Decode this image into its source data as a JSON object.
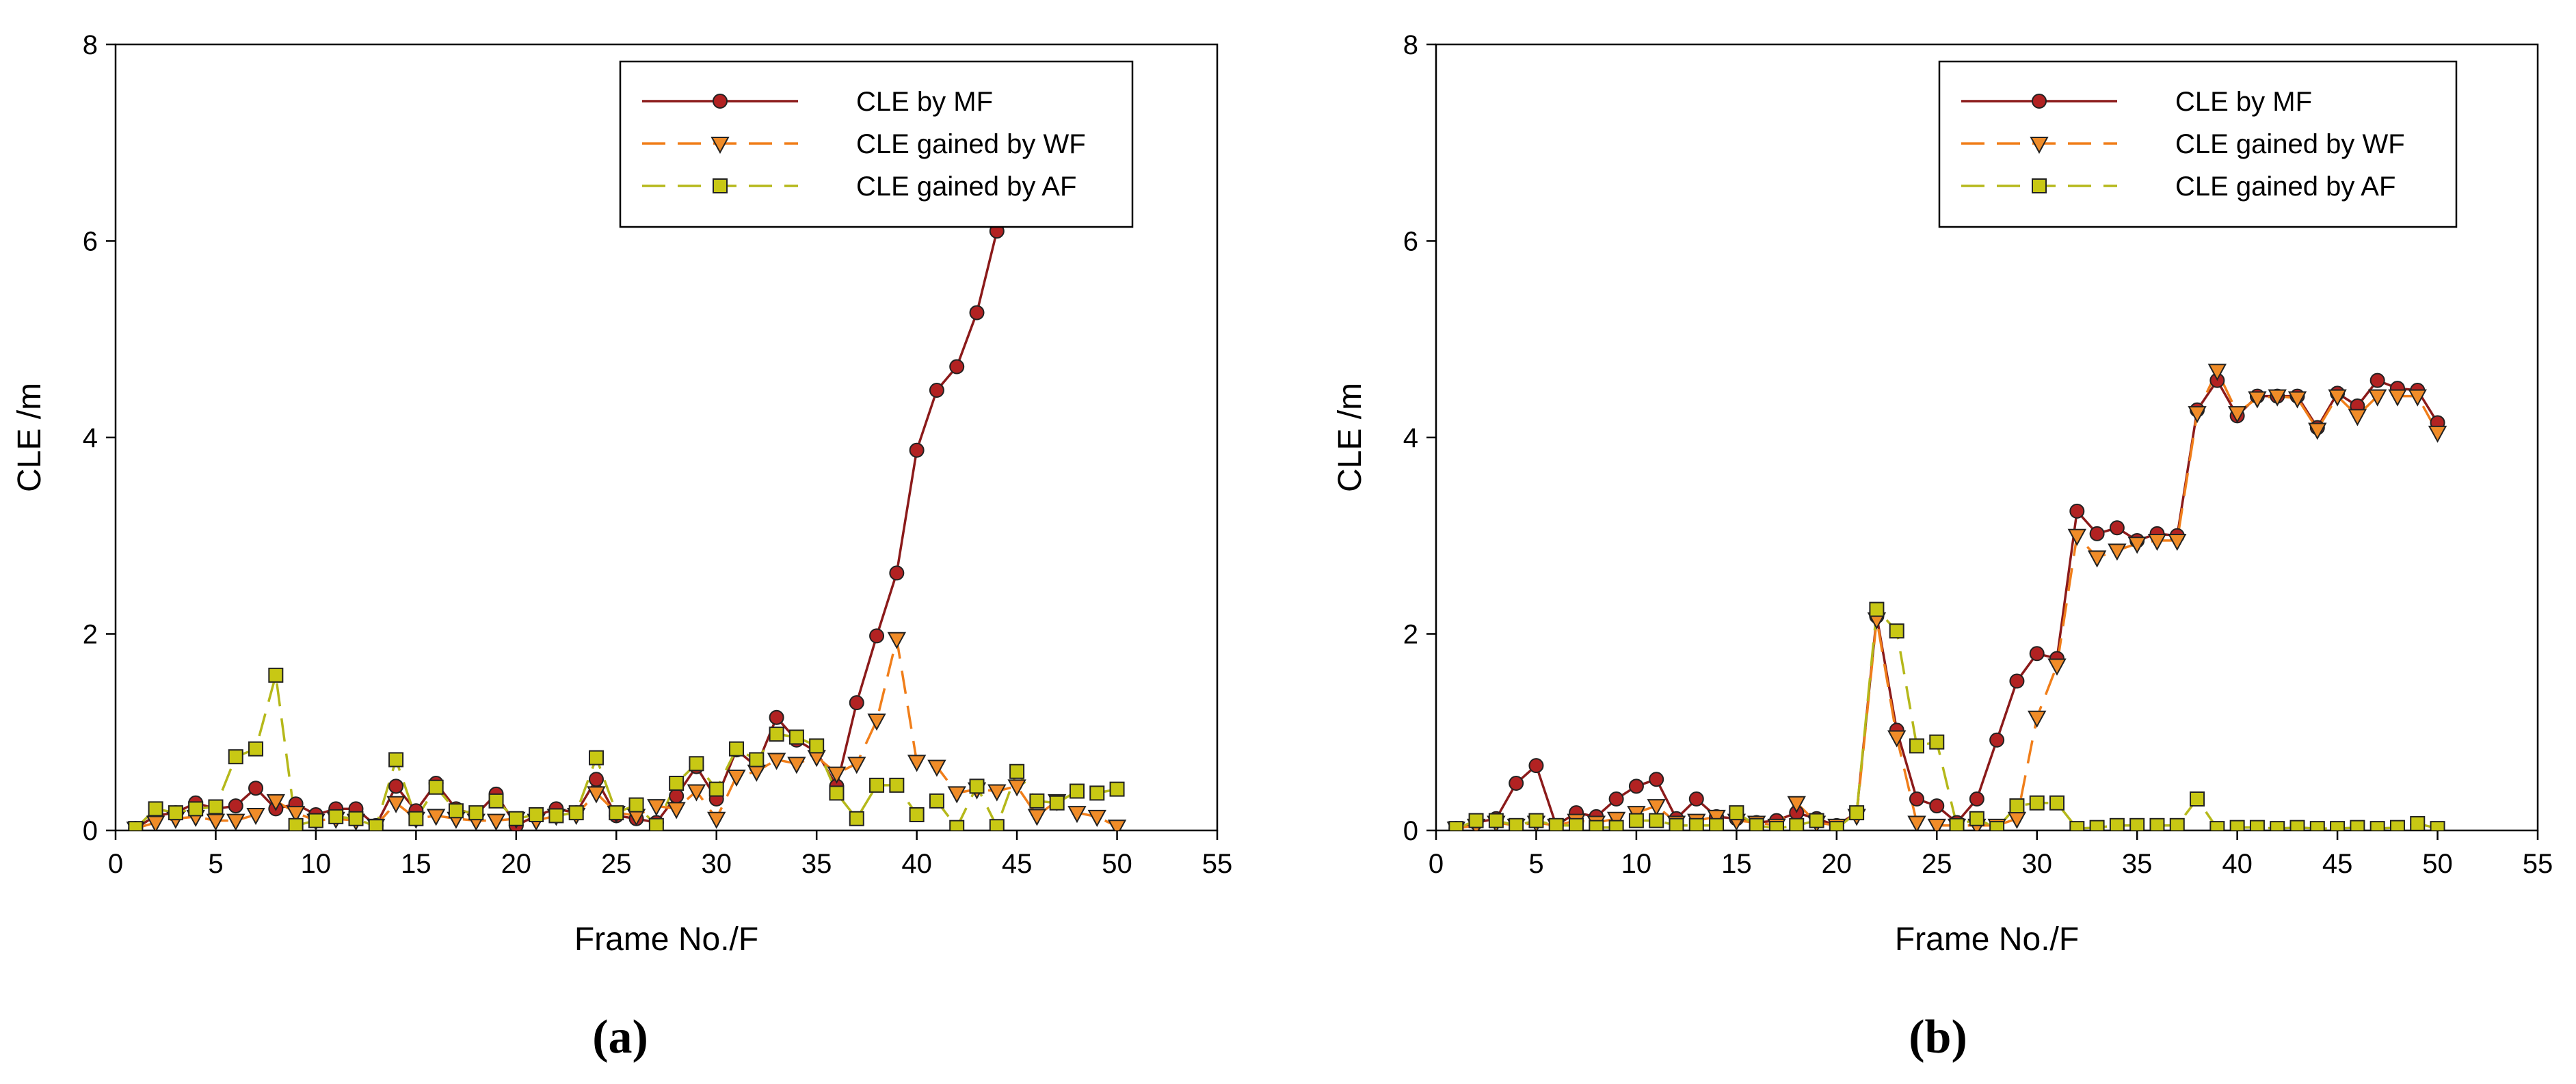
{
  "chart_data": [
    {
      "panel_label": "(a)",
      "type": "line",
      "title": "",
      "xlabel": "Frame No./F",
      "ylabel": "CLE /m",
      "xlim": [
        0,
        55
      ],
      "ylim": [
        0,
        8
      ],
      "xticks": [
        0,
        5,
        10,
        15,
        20,
        25,
        30,
        35,
        40,
        45,
        50,
        55
      ],
      "yticks": [
        0,
        2,
        4,
        6,
        8
      ],
      "grid": false,
      "legend": "top-right",
      "x": [
        1,
        2,
        3,
        4,
        5,
        6,
        7,
        8,
        9,
        10,
        11,
        12,
        13,
        14,
        15,
        16,
        17,
        18,
        19,
        20,
        21,
        22,
        23,
        24,
        25,
        26,
        27,
        28,
        29,
        30,
        31,
        32,
        33,
        34,
        35,
        36,
        37,
        38,
        39,
        40,
        41,
        42,
        43,
        44,
        45,
        46,
        47,
        48,
        49,
        50
      ],
      "series": [
        {
          "name": "CLE by MF",
          "color": "#8b1a1a",
          "marker": "circle",
          "line": "solid",
          "values": [
            0.02,
            0.15,
            0.18,
            0.28,
            0.22,
            0.25,
            0.43,
            0.22,
            0.27,
            0.16,
            0.22,
            0.22,
            0.05,
            0.45,
            0.2,
            0.48,
            0.22,
            0.16,
            0.37,
            0.05,
            0.15,
            0.22,
            0.18,
            0.52,
            0.15,
            0.12,
            0.08,
            0.35,
            0.65,
            0.32,
            0.82,
            0.65,
            1.15,
            0.92,
            0.8,
            0.45,
            1.3,
            1.98,
            2.62,
            3.87,
            4.48,
            4.72,
            5.27,
            6.1,
            null,
            null,
            null,
            null,
            null,
            null
          ]
        },
        {
          "name": "CLE gained by WF",
          "color": "#f07e1a",
          "marker": "triangle-down",
          "line": "dashed",
          "values": [
            0.02,
            0.08,
            0.12,
            0.14,
            0.1,
            0.1,
            0.16,
            0.3,
            0.18,
            0.1,
            0.12,
            0.1,
            0.05,
            0.28,
            0.12,
            0.15,
            0.12,
            0.1,
            0.1,
            0.12,
            0.1,
            0.15,
            0.16,
            0.38,
            0.18,
            0.15,
            0.25,
            0.22,
            0.4,
            0.12,
            0.55,
            0.6,
            0.72,
            0.68,
            0.75,
            0.58,
            0.68,
            1.12,
            1.95,
            0.7,
            0.65,
            0.38,
            0.42,
            0.4,
            0.45,
            0.15,
            0.3,
            0.18,
            0.14,
            0.04
          ]
        },
        {
          "name": "CLE gained by AF",
          "color": "#b5b81a",
          "marker": "square",
          "line": "dashed",
          "values": [
            0.02,
            0.22,
            0.18,
            0.22,
            0.24,
            0.75,
            0.83,
            1.58,
            0.05,
            0.1,
            0.14,
            0.12,
            0.04,
            0.72,
            0.12,
            0.44,
            0.2,
            0.18,
            0.3,
            0.12,
            0.16,
            0.15,
            0.18,
            0.74,
            0.18,
            0.26,
            0.05,
            0.48,
            0.68,
            0.42,
            0.83,
            0.72,
            0.98,
            0.95,
            0.86,
            0.38,
            0.12,
            0.46,
            0.46,
            0.16,
            0.3,
            0.03,
            0.45,
            0.04,
            0.6,
            0.3,
            0.28,
            0.4,
            0.38,
            0.42
          ]
        }
      ]
    },
    {
      "panel_label": "(b)",
      "type": "line",
      "title": "",
      "xlabel": "Frame No./F",
      "ylabel": "CLE /m",
      "xlim": [
        0,
        55
      ],
      "ylim": [
        0,
        8
      ],
      "xticks": [
        0,
        5,
        10,
        15,
        20,
        25,
        30,
        35,
        40,
        45,
        50,
        55
      ],
      "yticks": [
        0,
        2,
        4,
        6,
        8
      ],
      "grid": false,
      "legend": "top-right",
      "x": [
        1,
        2,
        3,
        4,
        5,
        6,
        7,
        8,
        9,
        10,
        11,
        12,
        13,
        14,
        15,
        16,
        17,
        18,
        19,
        20,
        21,
        22,
        23,
        24,
        25,
        26,
        27,
        28,
        29,
        30,
        31,
        32,
        33,
        34,
        35,
        36,
        37,
        38,
        39,
        40,
        41,
        42,
        43,
        44,
        45,
        46,
        47,
        48,
        49,
        50
      ],
      "series": [
        {
          "name": "CLE by MF",
          "color": "#8b1a1a",
          "marker": "circle",
          "line": "solid",
          "values": [
            0.02,
            0.08,
            0.12,
            0.48,
            0.66,
            0.05,
            0.18,
            0.14,
            0.32,
            0.45,
            0.52,
            0.12,
            0.32,
            0.14,
            0.12,
            0.08,
            0.1,
            0.18,
            0.12,
            0.05,
            0.18,
            2.18,
            1.02,
            0.32,
            0.25,
            0.08,
            0.32,
            0.92,
            1.52,
            1.8,
            1.75,
            3.25,
            3.02,
            3.08,
            2.95,
            3.02,
            3.0,
            4.28,
            4.58,
            4.22,
            4.42,
            4.42,
            4.42,
            4.1,
            4.45,
            4.32,
            4.58,
            4.5,
            4.48,
            4.15
          ]
        },
        {
          "name": "CLE gained by WF",
          "color": "#f07e1a",
          "marker": "triangle-down",
          "line": "dashed",
          "values": [
            0.02,
            0.05,
            0.08,
            0.05,
            0.08,
            0.05,
            0.1,
            0.08,
            0.12,
            0.18,
            0.25,
            0.08,
            0.1,
            0.14,
            0.1,
            0.08,
            0.05,
            0.28,
            0.08,
            0.05,
            0.15,
            2.15,
            0.95,
            0.08,
            0.05,
            0.05,
            0.05,
            0.05,
            0.12,
            1.15,
            1.68,
            3.0,
            2.78,
            2.85,
            2.92,
            2.95,
            2.95,
            4.25,
            4.68,
            4.25,
            4.4,
            4.42,
            4.4,
            4.08,
            4.42,
            4.22,
            4.42,
            4.42,
            4.42,
            4.05
          ]
        },
        {
          "name": "CLE gained by AF",
          "color": "#b5b81a",
          "marker": "square",
          "line": "dashed",
          "values": [
            0.02,
            0.1,
            0.1,
            0.05,
            0.1,
            0.05,
            0.05,
            0.03,
            0.03,
            0.1,
            0.1,
            0.05,
            0.05,
            0.05,
            0.18,
            0.05,
            0.02,
            0.05,
            0.1,
            0.02,
            0.18,
            2.25,
            2.03,
            0.86,
            0.9,
            0.05,
            0.12,
            0.02,
            0.25,
            0.28,
            0.28,
            0.02,
            0.03,
            0.05,
            0.05,
            0.05,
            0.05,
            0.32,
            0.02,
            0.03,
            0.03,
            0.02,
            0.03,
            0.02,
            0.02,
            0.03,
            0.02,
            0.03,
            0.07,
            0.02
          ]
        }
      ]
    }
  ]
}
